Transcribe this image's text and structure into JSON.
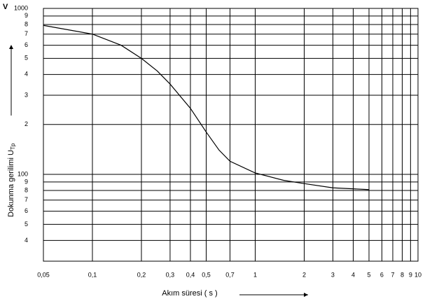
{
  "chart_data": {
    "type": "line",
    "yunit": "V",
    "xlabel": "Akım süresi ( s )",
    "ylabel": "Dokunma gerilimi U",
    "ylabel_sub": "Tp",
    "xlog": true,
    "ylog": true,
    "grid": true,
    "x": [
      0.05,
      0.1,
      0.15,
      0.2,
      0.25,
      0.3,
      0.4,
      0.5,
      0.6,
      0.7,
      1,
      1.5,
      2,
      3,
      5
    ],
    "series": [
      {
        "color": "#000000",
        "values": [
          790,
          700,
          600,
          500,
          420,
          350,
          250,
          180,
          140,
          120,
          102,
          92,
          88,
          83,
          81
        ]
      }
    ],
    "xlim": [
      0.05,
      10
    ],
    "ylim": [
      30,
      1000
    ],
    "xticks": [
      {
        "value": 0.05,
        "label": "0,05"
      },
      {
        "value": 0.1,
        "label": "0,1"
      },
      {
        "value": 0.2,
        "label": "0,2"
      },
      {
        "value": 0.3,
        "label": "0,3"
      },
      {
        "value": 0.4,
        "label": "0,4"
      },
      {
        "value": 0.5,
        "label": "0,5"
      },
      {
        "value": 0.7,
        "label": "0,7"
      },
      1,
      2,
      3,
      4,
      5,
      6,
      7,
      8,
      9,
      10
    ],
    "yticks": [
      1000,
      {
        "value": 900,
        "label": "9"
      },
      {
        "value": 800,
        "label": "8"
      },
      {
        "value": 700,
        "label": "7"
      },
      {
        "value": 600,
        "label": "6"
      },
      {
        "value": 500,
        "label": "5"
      },
      {
        "value": 400,
        "label": "4"
      },
      {
        "value": 300,
        "label": "3"
      },
      {
        "value": 200,
        "label": "2"
      },
      100,
      {
        "value": 90,
        "label": "9"
      },
      {
        "value": 80,
        "label": "8"
      },
      {
        "value": 70,
        "label": "7"
      },
      {
        "value": 60,
        "label": "6"
      },
      {
        "value": 50,
        "label": "5"
      },
      {
        "value": 40,
        "label": "4"
      }
    ]
  }
}
